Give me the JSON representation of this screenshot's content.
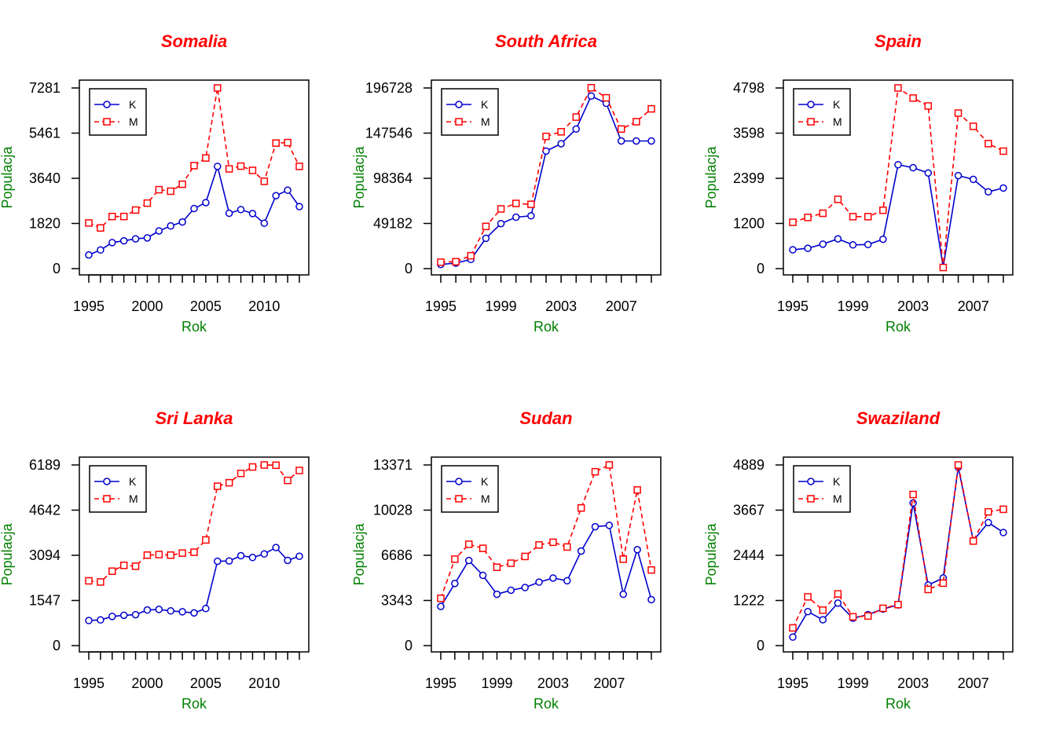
{
  "colors": {
    "title": "#ff0000",
    "axis_label": "#008000",
    "series_K": "#0000cd",
    "series_M": "#ff0000"
  },
  "chart_data": [
    {
      "type": "line",
      "title": "Somalia",
      "xlabel": "Rok",
      "ylabel": "Populacja",
      "x": [
        1995,
        1996,
        1997,
        1998,
        1999,
        2000,
        2001,
        2002,
        2003,
        2004,
        2005,
        2006,
        2007,
        2008,
        2009,
        2010,
        2011,
        2012,
        2013
      ],
      "xlim": [
        1995,
        2013
      ],
      "xticks": [
        "1995",
        "2000",
        "2005",
        "2010"
      ],
      "ylim": [
        0,
        7281
      ],
      "yticks": [
        "0",
        "1820",
        "3640",
        "5461",
        "7281"
      ],
      "legend": "top-left",
      "series": [
        {
          "name": "K",
          "values": [
            550,
            750,
            1050,
            1120,
            1200,
            1240,
            1520,
            1720,
            1880,
            2420,
            2660,
            4120,
            2230,
            2380,
            2220,
            1830,
            2940,
            3160,
            2500
          ]
        },
        {
          "name": "M",
          "values": [
            1840,
            1640,
            2100,
            2100,
            2360,
            2640,
            3180,
            3120,
            3400,
            4150,
            4460,
            7281,
            4020,
            4130,
            3960,
            3520,
            5060,
            5080,
            4120
          ]
        }
      ]
    },
    {
      "type": "line",
      "title": "South Africa",
      "xlabel": "Rok",
      "ylabel": "Populacja",
      "x": [
        1995,
        1996,
        1997,
        1998,
        1999,
        2000,
        2001,
        2002,
        2003,
        2004,
        2005,
        2006,
        2007,
        2008,
        2009
      ],
      "xlim": [
        1995,
        2009
      ],
      "xticks": [
        "1995",
        "1999",
        "2003",
        "2007"
      ],
      "ylim": [
        0,
        196728
      ],
      "yticks": [
        "0",
        "49182",
        "98364",
        "147546",
        "196728"
      ],
      "legend": "top-left",
      "series": [
        {
          "name": "K",
          "values": [
            4500,
            6000,
            10000,
            33000,
            49000,
            56000,
            57500,
            128000,
            136000,
            152000,
            188000,
            180000,
            139000,
            139000,
            139000
          ]
        },
        {
          "name": "M",
          "values": [
            7000,
            7500,
            14000,
            46000,
            65000,
            71000,
            70000,
            144000,
            149000,
            165000,
            197000,
            186000,
            152000,
            160000,
            174000
          ]
        }
      ]
    },
    {
      "type": "line",
      "title": "Spain",
      "xlabel": "Rok",
      "ylabel": "Populacja",
      "x": [
        1995,
        1996,
        1997,
        1998,
        1999,
        2000,
        2001,
        2002,
        2003,
        2004,
        2005,
        2006,
        2007,
        2008,
        2009
      ],
      "xlim": [
        1995,
        2009
      ],
      "xticks": [
        "1995",
        "1999",
        "2003",
        "2007"
      ],
      "ylim": [
        0,
        4798
      ],
      "yticks": [
        "0",
        "1200",
        "2399",
        "3598",
        "4798"
      ],
      "legend": "top-left",
      "series": [
        {
          "name": "K",
          "values": [
            500,
            540,
            650,
            790,
            630,
            640,
            780,
            2760,
            2680,
            2540,
            40,
            2470,
            2370,
            2040,
            2140
          ]
        },
        {
          "name": "M",
          "values": [
            1230,
            1360,
            1470,
            1840,
            1380,
            1380,
            1550,
            4798,
            4530,
            4320,
            30,
            4130,
            3780,
            3320,
            3120
          ]
        }
      ]
    },
    {
      "type": "line",
      "title": "Sri Lanka",
      "xlabel": "Rok",
      "ylabel": "Populacja",
      "x": [
        1995,
        1996,
        1997,
        1998,
        1999,
        2000,
        2001,
        2002,
        2003,
        2004,
        2005,
        2006,
        2007,
        2008,
        2009,
        2010,
        2011,
        2012,
        2013
      ],
      "xlim": [
        1995,
        2013
      ],
      "xticks": [
        "1995",
        "2000",
        "2005",
        "2010"
      ],
      "ylim": [
        0,
        6189
      ],
      "yticks": [
        "0",
        "1547",
        "3094",
        "4642",
        "6189"
      ],
      "legend": "top-left",
      "series": [
        {
          "name": "K",
          "values": [
            860,
            880,
            1000,
            1040,
            1060,
            1220,
            1240,
            1190,
            1160,
            1120,
            1270,
            2890,
            2900,
            3080,
            3020,
            3140,
            3360,
            2920,
            3060
          ]
        },
        {
          "name": "M",
          "values": [
            2220,
            2180,
            2550,
            2750,
            2720,
            3100,
            3120,
            3100,
            3170,
            3200,
            3620,
            5460,
            5580,
            5900,
            6120,
            6189,
            6180,
            5660,
            6000
          ]
        }
      ]
    },
    {
      "type": "line",
      "title": "Sudan",
      "xlabel": "Rok",
      "ylabel": "Populacja",
      "x": [
        1995,
        1996,
        1997,
        1998,
        1999,
        2000,
        2001,
        2002,
        2003,
        2004,
        2005,
        2006,
        2007,
        2008,
        2009,
        2010
      ],
      "xlim": [
        1995,
        2010
      ],
      "xticks": [
        "1995",
        "1999",
        "2003",
        "2007"
      ],
      "ylim": [
        0,
        13371
      ],
      "yticks": [
        "0",
        "3343",
        "6686",
        "10028",
        "13371"
      ],
      "legend": "top-left",
      "series": [
        {
          "name": "K",
          "values": [
            2900,
            4600,
            6300,
            5200,
            3800,
            4100,
            4300,
            4700,
            5000,
            4800,
            7000,
            8800,
            8900,
            3800,
            7100,
            3400
          ]
        },
        {
          "name": "M",
          "values": [
            3500,
            6400,
            7500,
            7200,
            5800,
            6100,
            6600,
            7450,
            7650,
            7300,
            10190,
            12870,
            13371,
            6400,
            11520,
            5600
          ]
        }
      ]
    },
    {
      "type": "line",
      "title": "Swaziland",
      "xlabel": "Rok",
      "ylabel": "Populacja",
      "x": [
        1995,
        1996,
        1997,
        1998,
        1999,
        2000,
        2001,
        2002,
        2003,
        2004,
        2005,
        2006,
        2007,
        2008,
        2009
      ],
      "xlim": [
        1995,
        2009
      ],
      "xticks": [
        "1995",
        "1999",
        "2003",
        "2007"
      ],
      "ylim": [
        0,
        4889
      ],
      "yticks": [
        "0",
        "1222",
        "2444",
        "3667",
        "4889"
      ],
      "legend": "top-left",
      "series": [
        {
          "name": "K",
          "values": [
            230,
            920,
            700,
            1150,
            740,
            840,
            990,
            1100,
            3860,
            1640,
            1830,
            4830,
            2840,
            3330,
            3060
          ]
        },
        {
          "name": "M",
          "values": [
            480,
            1320,
            960,
            1400,
            780,
            800,
            1010,
            1110,
            4090,
            1520,
            1690,
            4889,
            2830,
            3620,
            3690
          ]
        }
      ]
    }
  ]
}
